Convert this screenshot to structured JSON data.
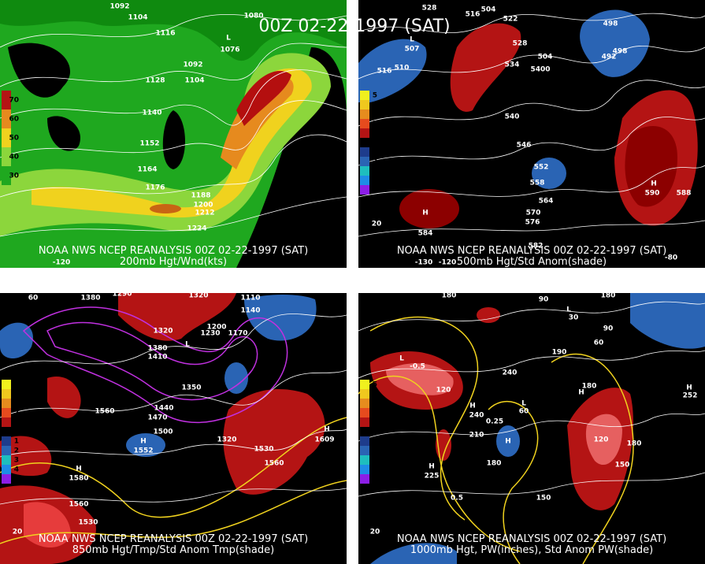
{
  "header": {
    "title": "00Z 02-22-1997 (SAT)"
  },
  "panels": [
    {
      "caption": "NOAA NWS NCEP REANALYSIS 00Z 02-22-1997 (SAT)",
      "subcaption": "200mb Hgt/Wnd(kts)",
      "legend": [
        "70",
        "60",
        "50",
        "40",
        "30"
      ],
      "labels": [
        "1092",
        "1104",
        "1116",
        "1080",
        "L",
        "1076",
        "1128",
        "1092",
        "1104",
        "1140",
        "1152",
        "1164",
        "1176",
        "1188",
        "1200",
        "1212",
        "1224",
        "-120"
      ]
    },
    {
      "caption": "NOAA NWS NCEP REANALYSIS 00Z 02-22-1997 (SAT)",
      "subcaption": "500mb Hgt/Std Anom(shade)",
      "legend": [
        "5",
        "4",
        "3",
        "2",
        "1",
        "0",
        "1",
        "2",
        "3",
        "4",
        "5"
      ],
      "labels": [
        "528",
        "504",
        "516",
        "522",
        "498",
        "L",
        "507",
        "510",
        "516",
        "528",
        "534",
        "504",
        "5400",
        "492",
        "498",
        "540",
        "546",
        "552",
        "558",
        "564",
        "570",
        "576",
        "582",
        "H",
        "590",
        "588",
        "H",
        "584",
        "20",
        "-130",
        "-120",
        "-80"
      ]
    },
    {
      "caption": "NOAA NWS NCEP REANALYSIS 00Z 02-22-1997 (SAT)",
      "subcaption": "850mb Hgt/Tmp/Std Anom Tmp(shade)",
      "legend": [
        "5",
        "4",
        "3",
        "2",
        "1",
        "0",
        "1",
        "2",
        "3",
        "4",
        "5"
      ],
      "labels": [
        "1380",
        "1290",
        "1320",
        "1110",
        "1140",
        "1200",
        "1170",
        "1230",
        "1320",
        "1380",
        "1410",
        "L",
        "1350",
        "1440",
        "1470",
        "1500",
        "1560",
        "H",
        "1552",
        "1320",
        "1530",
        "1560",
        "H",
        "1609",
        "H",
        "1580",
        "1560",
        "1530",
        "20",
        "60"
      ]
    },
    {
      "caption": "NOAA NWS NCEP REANALYSIS 00Z 02-22-1997 (SAT)",
      "subcaption": "1000mb Hgt, PW(inches), Std Anom PW(shade)",
      "legend": [
        "5",
        "4",
        "3",
        "2",
        "1",
        "0",
        "1",
        "2",
        "3",
        "4",
        "5"
      ],
      "labels": [
        "180",
        "90",
        "180",
        "L",
        "30",
        "90",
        "60",
        "190",
        "240",
        "L",
        "-0.5",
        "120",
        "H",
        "180",
        "L",
        "60",
        "H",
        "240",
        "0.25",
        "210",
        "H",
        "180",
        "H",
        "225",
        "0.5",
        "150",
        "180",
        "150",
        "120",
        "H",
        "252",
        "20"
      ]
    }
  ]
}
